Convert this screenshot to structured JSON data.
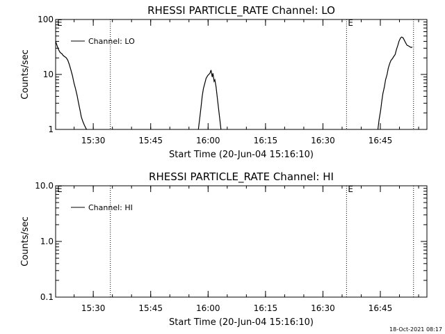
{
  "footer": {
    "timestamp": "18-Oct-2021 08:17"
  },
  "chart_data": [
    {
      "type": "line",
      "title": "RHESSI PARTICLE_RATE Channel: LO",
      "xlabel": "Start Time (20-Jun-04 15:16:10)",
      "ylabel": "Counts/sec",
      "x_unit": "minutes after 15:16:10",
      "xlim": [
        4.0,
        101.0
      ],
      "ylim": [
        1,
        100
      ],
      "y_scale": "log",
      "x_tick_labels": [
        "15:30",
        "15:45",
        "16:00",
        "16:15",
        "16:30",
        "16:45"
      ],
      "y_tick_labels": [
        "1",
        "10",
        "100"
      ],
      "legend": {
        "position": "top-left",
        "entries": [
          "Channel: LO"
        ]
      },
      "grid": false,
      "event_markers": [
        {
          "x": 18.3,
          "label": "",
          "style": "dotted"
        },
        {
          "x": 80.0,
          "label": "E",
          "style": "dotted"
        },
        {
          "x": 97.5,
          "label": "",
          "style": "dotted"
        }
      ],
      "corner_flags": [
        "E"
      ],
      "series": [
        {
          "name": "Channel: LO",
          "x": [
            4.0,
            4.4,
            4.8,
            5.2,
            5.6,
            6.0,
            6.4,
            6.8,
            7.2,
            7.6,
            8.0,
            8.4,
            8.8,
            9.2,
            9.6,
            10.0,
            10.4,
            10.7,
            11.1,
            11.5,
            11.9,
            12.1
          ],
          "y": [
            40,
            33,
            28,
            25,
            24,
            22,
            21,
            20,
            18,
            15,
            12,
            9.5,
            7.0,
            5.5,
            4.2,
            3.0,
            2.2,
            1.7,
            1.4,
            1.2,
            1.05,
            1.0
          ]
        },
        {
          "name": "",
          "x": [
            41.3,
            41.7,
            42.0,
            42.3,
            42.6,
            43.0,
            43.3,
            43.7,
            44.0,
            44.3,
            44.6,
            44.9,
            45.1,
            45.4,
            45.6,
            45.9,
            46.2,
            46.6,
            46.9,
            47.2
          ],
          "y": [
            1.0,
            1.7,
            2.6,
            4.0,
            5.5,
            7.0,
            8.5,
            9.5,
            10.0,
            10.5,
            12.0,
            9.0,
            10.5,
            7.5,
            8.0,
            6.0,
            4.0,
            2.3,
            1.5,
            1.0
          ]
        },
        {
          "name": "",
          "x": [
            88.2,
            88.5,
            88.9,
            89.2,
            89.5,
            89.9,
            90.2,
            90.6,
            90.9,
            91.3,
            91.6,
            92.0,
            92.3,
            92.7,
            93.0,
            93.4,
            93.7,
            94.1,
            94.4,
            94.8,
            95.1,
            95.5,
            95.8,
            96.2,
            96.5,
            96.9,
            97.2
          ],
          "y": [
            1.0,
            1.5,
            2.2,
            3.2,
            4.5,
            6.0,
            8.0,
            10.0,
            13.0,
            16.0,
            18.0,
            19.5,
            21.0,
            23.0,
            28.0,
            34.0,
            40.0,
            46.0,
            48.0,
            46.0,
            42.0,
            37.0,
            34.0,
            33.0,
            32.0,
            31.0,
            31.5
          ]
        }
      ]
    },
    {
      "type": "line",
      "title": "RHESSI PARTICLE_RATE Channel: HI",
      "xlabel": "Start Time (20-Jun-04 15:16:10)",
      "ylabel": "Counts/sec",
      "x_unit": "minutes after 15:16:10",
      "xlim": [
        4.0,
        101.0
      ],
      "ylim": [
        0.1,
        10.0
      ],
      "y_scale": "log",
      "x_tick_labels": [
        "15:30",
        "15:45",
        "16:00",
        "16:15",
        "16:30",
        "16:45"
      ],
      "y_tick_labels": [
        "0.1",
        "1.0",
        "10.0"
      ],
      "legend": {
        "position": "top-left",
        "entries": [
          "Channel: HI"
        ]
      },
      "grid": false,
      "event_markers": [
        {
          "x": 18.3,
          "label": "",
          "style": "dotted"
        },
        {
          "x": 80.0,
          "label": "E",
          "style": "dotted"
        },
        {
          "x": 97.5,
          "label": "",
          "style": "dotted"
        }
      ],
      "corner_flags": [
        "E"
      ],
      "series": [
        {
          "name": "Channel: HI",
          "x": [],
          "y": []
        }
      ]
    }
  ]
}
